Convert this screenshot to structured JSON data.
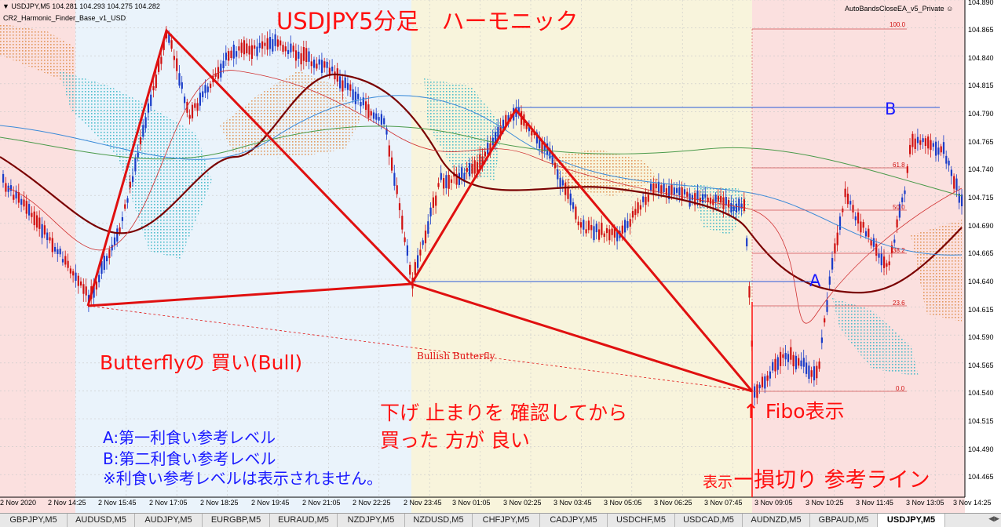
{
  "header": {
    "symbol_line": "USDJPY,M5  104.281 104.293 104.275 104.282",
    "indicator_name": "CR2_Harmonic_Finder_Base_v1_USD",
    "ea_name": "AutoBandsCloseEA_v5_Private"
  },
  "annotations": {
    "title": "USDJPY5分足　ハーモニック",
    "pattern_label": "Butterflyの 買い(Bull)",
    "bullish_butterfly": "Bullish Butterfly",
    "advice_line1": "下げ 止まりを 確認してから",
    "advice_line2": "買った 方が 良い",
    "fibo_label": "↑ Fibo表示",
    "level_a_note": "A:第一利食い参考レベル",
    "level_b_note": "B:第二利食い参考レベル",
    "level_note": "※利食い参考レベルは表示されません。",
    "stop_prefix": "表示",
    "stop_label": "ー損切り 参考ライン",
    "marker_a": "A",
    "marker_b": "B"
  },
  "fibo_levels": [
    "100.0",
    "61.8",
    "50.0",
    "38.2",
    "23.6",
    "0.0"
  ],
  "price_axis": [
    "104.890",
    "104.865",
    "104.840",
    "104.815",
    "104.790",
    "104.765",
    "104.740",
    "104.715",
    "104.690",
    "104.665",
    "104.640",
    "104.615",
    "104.590",
    "104.565",
    "104.540",
    "104.515",
    "104.490",
    "104.465"
  ],
  "time_axis": [
    "2 Nov 2020",
    "2 Nov 14:25",
    "2 Nov 15:45",
    "2 Nov 17:05",
    "2 Nov 18:25",
    "2 Nov 19:45",
    "2 Nov 21:05",
    "2 Nov 22:25",
    "2 Nov 23:45",
    "3 Nov 01:05",
    "3 Nov 02:25",
    "3 Nov 03:45",
    "3 Nov 05:05",
    "3 Nov 06:25",
    "3 Nov 07:45",
    "3 Nov 09:05",
    "3 Nov 10:25",
    "3 Nov 11:45",
    "3 Nov 13:05",
    "3 Nov 14:25"
  ],
  "tabs": [
    "GBPJPY,M5",
    "AUDUSD,M5",
    "AUDJPY,M5",
    "EURGBP,M5",
    "EURAUD,M5",
    "NZDJPY,M5",
    "NZDUSD,M5",
    "CHFJPY,M5",
    "CADJPY,M5",
    "USDCHF,M5",
    "USDCAD,M5",
    "AUDNZD,M5",
    "GBPAUD,M5",
    "USDJPY,M5"
  ],
  "active_tab": "USDJPY,M5",
  "colors": {
    "pattern": "#e01010",
    "text_red": "#ff1010",
    "text_blue": "#1a1aff",
    "bull_candle": "#1a3cc8",
    "bear_candle": "#d01010",
    "zone_pink": "#fbe0df",
    "zone_blue": "#eaf3fb",
    "zone_yellow": "#f8f4dc"
  }
}
